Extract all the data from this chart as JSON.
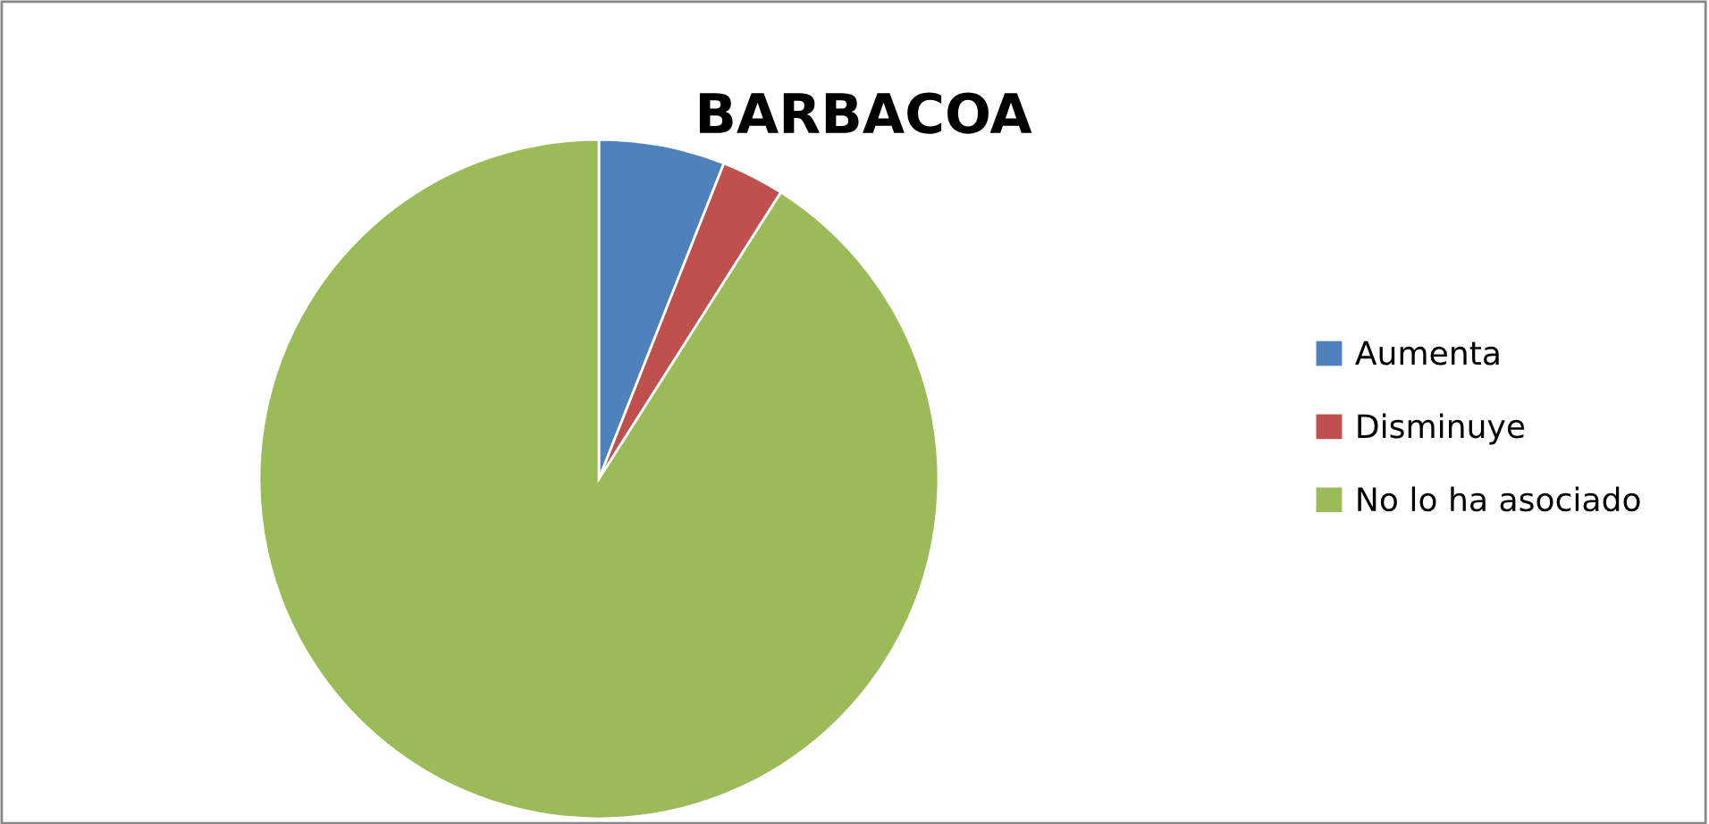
{
  "chart_data": {
    "type": "pie",
    "title": "BARBACOA",
    "categories": [
      "Aumenta",
      "Disminuye",
      "No lo ha asociado"
    ],
    "values": [
      6,
      3,
      91
    ],
    "colors": [
      "#4f81bd",
      "#c0504d",
      "#9bbb59"
    ],
    "legend": "right"
  }
}
